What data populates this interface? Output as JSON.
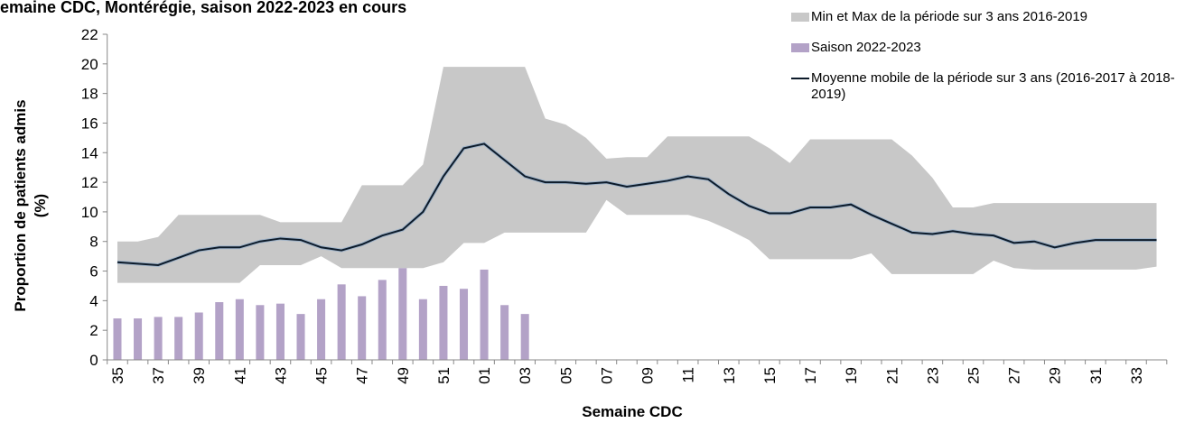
{
  "chart_data": {
    "type": "combo",
    "title": "emaine CDC, Montérégie, saison 2022-2023 en cours",
    "x_label": "Semaine CDC",
    "y_label": [
      "Proportion de patients admis",
      "(%)"
    ],
    "categories": [
      "35",
      null,
      "37",
      null,
      "39",
      null,
      "41",
      null,
      "43",
      null,
      "45",
      null,
      "47",
      null,
      "49",
      null,
      "51",
      null,
      "01",
      null,
      "03",
      null,
      "05",
      null,
      "07",
      null,
      "09",
      null,
      "11",
      null,
      "13",
      null,
      "15",
      null,
      "17",
      null,
      "19",
      null,
      "21",
      null,
      "23",
      null,
      "25",
      null,
      "27",
      null,
      "29",
      null,
      "31",
      null,
      "33",
      null
    ],
    "ylim": [
      0,
      22
    ],
    "yticks": [
      0,
      2,
      4,
      6,
      8,
      10,
      12,
      14,
      16,
      18,
      20,
      22
    ],
    "legend": "top-right",
    "series": [
      {
        "name": "Min et Max de la période sur 3 ans 2016-2019",
        "type": "range",
        "color": "#c8c8c8",
        "min": [
          5.2,
          5.2,
          5.2,
          5.2,
          5.2,
          5.2,
          5.2,
          6.4,
          6.4,
          6.4,
          7.0,
          6.2,
          6.2,
          6.2,
          6.2,
          6.2,
          6.6,
          7.9,
          7.9,
          8.6,
          8.6,
          8.6,
          8.6,
          8.6,
          10.8,
          9.8,
          9.8,
          9.8,
          9.8,
          9.4,
          8.8,
          8.1,
          6.8,
          6.8,
          6.8,
          6.8,
          6.8,
          7.2,
          5.8,
          5.8,
          5.8,
          5.8,
          5.8,
          6.7,
          6.2,
          6.1,
          6.1,
          6.1,
          6.1,
          6.1,
          6.1,
          6.3
        ],
        "max": [
          8.0,
          8.0,
          8.3,
          9.8,
          9.8,
          9.8,
          9.8,
          9.8,
          9.3,
          9.3,
          9.3,
          9.3,
          11.8,
          11.8,
          11.8,
          13.2,
          19.8,
          19.8,
          19.8,
          19.8,
          19.8,
          16.3,
          15.9,
          15.0,
          13.6,
          13.7,
          13.7,
          15.1,
          15.1,
          15.1,
          15.1,
          15.1,
          14.3,
          13.3,
          14.9,
          14.9,
          14.9,
          14.9,
          14.9,
          13.8,
          12.3,
          10.3,
          10.3,
          10.6,
          10.6,
          10.6,
          10.6,
          10.6,
          10.6,
          10.6,
          10.6,
          10.6
        ]
      },
      {
        "name": "Saison 2022-2023",
        "type": "bar",
        "color": "#b3a2c7",
        "values": [
          2.8,
          2.8,
          2.9,
          2.9,
          3.2,
          3.9,
          4.1,
          3.7,
          3.8,
          3.1,
          4.1,
          5.1,
          4.3,
          5.4,
          6.2,
          4.1,
          5.0,
          4.8,
          6.1,
          3.7,
          3.1,
          null,
          null,
          null,
          null,
          null,
          null,
          null,
          null,
          null,
          null,
          null,
          null,
          null,
          null,
          null,
          null,
          null,
          null,
          null,
          null,
          null,
          null,
          null,
          null,
          null,
          null,
          null,
          null,
          null,
          null,
          null
        ]
      },
      {
        "name": "Moyenne mobile de la période sur 3 ans (2016-2017 à 2018-2019)",
        "type": "line",
        "color": "#0d1b2a",
        "values": [
          6.6,
          6.5,
          6.4,
          6.9,
          7.4,
          7.6,
          7.6,
          8.0,
          8.2,
          8.1,
          7.6,
          7.4,
          7.8,
          8.4,
          8.8,
          10.0,
          12.4,
          14.3,
          14.6,
          13.5,
          12.4,
          12.0,
          12.0,
          11.9,
          12.0,
          11.7,
          11.9,
          12.1,
          12.4,
          12.2,
          11.2,
          10.4,
          9.9,
          9.9,
          10.3,
          10.3,
          10.5,
          9.8,
          9.2,
          8.6,
          8.5,
          8.7,
          8.5,
          8.4,
          7.9,
          8.0,
          7.6,
          7.9,
          8.1,
          8.1,
          8.1,
          8.1
        ]
      }
    ]
  }
}
